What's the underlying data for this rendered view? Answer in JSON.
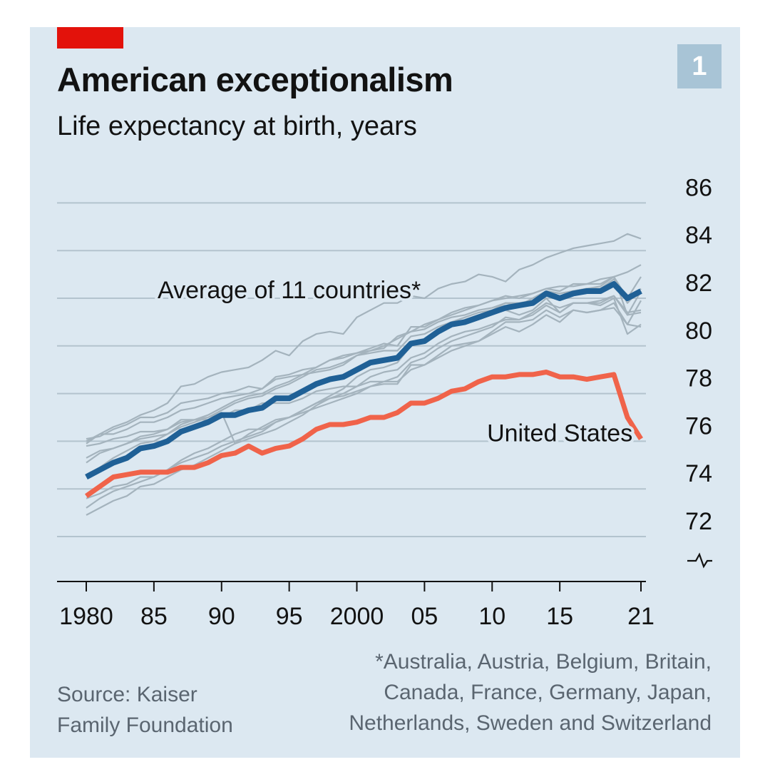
{
  "header": {
    "title": "American exceptionalism",
    "subtitle": "Life expectancy at birth, years",
    "badge": "1"
  },
  "source": {
    "line1": "Source: Kaiser",
    "line2": "Family Foundation"
  },
  "footnote": {
    "line1": "*Australia, Austria, Belgium, Britain,",
    "line2": "Canada, France, Germany, Japan,",
    "line3": "Netherlands, Sweden and Switzerland"
  },
  "colors": {
    "background": "#dce8f1",
    "accent_red": "#e3120b",
    "average_line": "#1f6096",
    "us_line": "#f0634a",
    "country_lines": "#a4b3bd",
    "gridlines": "#b3c3ce"
  },
  "chart_data": {
    "type": "line",
    "title": "American exceptionalism",
    "subtitle": "Life expectancy at birth, years",
    "ylim": [
      71,
      86
    ],
    "xlim": [
      1980,
      2021
    ],
    "y_ticks": [
      72,
      74,
      76,
      78,
      80,
      82,
      84,
      86
    ],
    "y_tick_labels": [
      "72",
      "74",
      "76",
      "78",
      "80",
      "82",
      "84",
      "86"
    ],
    "x_ticks": [
      1980,
      1985,
      1990,
      1995,
      2000,
      2005,
      2010,
      2015,
      2021
    ],
    "x_tick_labels": [
      "1980",
      "85",
      "90",
      "95",
      "2000",
      "05",
      "10",
      "15",
      "21"
    ],
    "y_axis_broken": true,
    "grid": true,
    "x": [
      1980,
      1981,
      1982,
      1983,
      1984,
      1985,
      1986,
      1987,
      1988,
      1989,
      1990,
      1991,
      1992,
      1993,
      1994,
      1995,
      1996,
      1997,
      1998,
      1999,
      2000,
      2001,
      2002,
      2003,
      2004,
      2005,
      2006,
      2007,
      2008,
      2009,
      2010,
      2011,
      2012,
      2013,
      2014,
      2015,
      2016,
      2017,
      2018,
      2019,
      2020,
      2021
    ],
    "series": [
      {
        "name": "Average of 11 countries*",
        "role": "average",
        "values": [
          74.5,
          74.8,
          75.1,
          75.3,
          75.7,
          75.8,
          76.0,
          76.4,
          76.6,
          76.8,
          77.1,
          77.1,
          77.3,
          77.4,
          77.8,
          77.8,
          78.1,
          78.4,
          78.6,
          78.7,
          79.0,
          79.3,
          79.4,
          79.5,
          80.1,
          80.2,
          80.6,
          80.9,
          81.0,
          81.2,
          81.4,
          81.6,
          81.7,
          81.8,
          82.2,
          82.0,
          82.2,
          82.3,
          82.3,
          82.6,
          82.0,
          82.3
        ]
      },
      {
        "name": "United States",
        "role": "us",
        "values": [
          73.7,
          74.1,
          74.5,
          74.6,
          74.7,
          74.7,
          74.7,
          74.9,
          74.9,
          75.1,
          75.4,
          75.5,
          75.8,
          75.5,
          75.7,
          75.8,
          76.1,
          76.5,
          76.7,
          76.7,
          76.8,
          77.0,
          77.0,
          77.2,
          77.6,
          77.6,
          77.8,
          78.1,
          78.2,
          78.5,
          78.7,
          78.7,
          78.8,
          78.8,
          78.9,
          78.7,
          78.7,
          78.6,
          78.7,
          78.8,
          77.0,
          76.1
        ]
      },
      {
        "role": "country",
        "values": [
          74.6,
          74.9,
          75.3,
          75.6,
          75.9,
          76.0,
          76.3,
          76.7,
          76.9,
          77.0,
          77.3,
          77.6,
          77.8,
          77.9,
          78.2,
          78.4,
          78.7,
          79.0,
          79.1,
          79.3,
          79.6,
          79.8,
          80.0,
          80.3,
          80.6,
          80.9,
          81.1,
          81.4,
          81.6,
          81.7,
          81.9,
          82.0,
          82.1,
          82.2,
          82.4,
          82.5,
          82.5,
          82.6,
          82.8,
          82.9,
          83.1,
          83.4
        ]
      },
      {
        "role": "country",
        "values": [
          72.9,
          73.2,
          73.5,
          73.7,
          74.1,
          74.2,
          74.5,
          74.8,
          75.0,
          75.3,
          75.6,
          75.9,
          76.1,
          76.3,
          76.5,
          76.8,
          77.1,
          77.5,
          77.8,
          78.0,
          78.3,
          78.7,
          78.9,
          79.0,
          79.5,
          79.7,
          80.1,
          80.4,
          80.6,
          80.7,
          80.9,
          81.1,
          81.1,
          81.3,
          81.7,
          81.4,
          81.8,
          81.8,
          81.9,
          82.1,
          81.3,
          81.4
        ]
      },
      {
        "role": "country",
        "values": [
          73.6,
          73.8,
          74.1,
          74.2,
          74.5,
          74.5,
          74.8,
          75.2,
          75.5,
          75.7,
          76.0,
          76.3,
          76.5,
          76.5,
          76.8,
          77.0,
          77.3,
          77.6,
          77.8,
          77.9,
          78.1,
          78.3,
          78.4,
          78.4,
          79.2,
          79.2,
          79.6,
          80.0,
          80.1,
          80.2,
          80.5,
          80.8,
          80.6,
          80.9,
          81.3,
          81.0,
          81.5,
          81.4,
          81.5,
          81.8,
          80.9,
          81.9
        ]
      },
      {
        "role": "country",
        "values": [
          73.2,
          73.6,
          73.9,
          74.1,
          74.3,
          74.5,
          74.8,
          75.1,
          75.3,
          75.5,
          75.8,
          76.0,
          76.2,
          76.4,
          76.8,
          77.0,
          77.2,
          77.4,
          77.6,
          77.8,
          78.0,
          78.3,
          78.5,
          78.5,
          79.0,
          79.2,
          79.5,
          79.8,
          80.0,
          80.2,
          80.6,
          81.0,
          81.0,
          81.1,
          81.5,
          81.2,
          81.5,
          81.4,
          81.5,
          81.6,
          80.9,
          80.8
        ]
      },
      {
        "role": "country",
        "values": [
          75.3,
          75.6,
          75.7,
          75.9,
          76.2,
          76.3,
          76.5,
          76.8,
          76.9,
          77.1,
          77.4,
          77.7,
          77.9,
          78.0,
          78.3,
          78.5,
          78.8,
          79.1,
          79.4,
          79.6,
          79.7,
          79.9,
          80.1,
          80.0,
          80.8,
          80.8,
          81.1,
          81.3,
          81.5,
          81.7,
          81.9,
          82.1,
          82.0,
          82.2,
          82.4,
          82.3,
          82.6,
          82.6,
          82.6,
          82.9,
          82.0,
          82.9
        ]
      },
      {
        "role": "country",
        "values": [
          76.1,
          76.2,
          76.5,
          76.7,
          77.0,
          77.0,
          77.2,
          77.6,
          77.7,
          77.8,
          78.0,
          78.1,
          78.3,
          78.2,
          78.6,
          78.7,
          78.8,
          78.9,
          79.0,
          79.2,
          79.6,
          79.7,
          79.8,
          79.8,
          80.4,
          80.5,
          80.8,
          81.0,
          81.2,
          81.4,
          81.5,
          81.8,
          81.8,
          81.9,
          82.3,
          82.2,
          82.3,
          82.4,
          82.5,
          82.9,
          81.3,
          82.3
        ]
      },
      {
        "role": "country",
        "values": [
          75.8,
          75.9,
          76.1,
          76.2,
          76.4,
          76.4,
          76.5,
          76.9,
          76.9,
          76.9,
          77.0,
          77.3,
          77.3,
          77.6,
          77.6,
          77.6,
          77.8,
          78.1,
          78.2,
          78.3,
          78.3,
          78.5,
          78.5,
          78.7,
          79.3,
          79.5,
          79.9,
          80.2,
          80.4,
          80.6,
          80.8,
          81.2,
          81.1,
          81.4,
          81.8,
          81.6,
          81.8,
          81.8,
          81.8,
          82.1,
          81.4,
          81.5
        ]
      },
      {
        "role": "country",
        "values": [
          76.0,
          76.3,
          76.3,
          76.5,
          76.8,
          76.8,
          77.0,
          77.3,
          77.4,
          77.6,
          77.8,
          77.9,
          78.0,
          78.2,
          78.7,
          78.8,
          79.0,
          79.1,
          79.4,
          79.5,
          79.7,
          79.8,
          79.9,
          80.4,
          80.6,
          80.7,
          81.0,
          81.2,
          81.3,
          81.5,
          81.6,
          81.8,
          81.7,
          82.0,
          82.3,
          82.2,
          82.3,
          82.4,
          82.4,
          82.8,
          81.8,
          82.4
        ]
      },
      {
        "role": "country",
        "values": [
          75.9,
          76.3,
          76.6,
          76.8,
          77.1,
          77.3,
          77.6,
          78.3,
          78.4,
          78.7,
          78.9,
          79.0,
          79.1,
          79.4,
          79.8,
          79.6,
          80.2,
          80.5,
          80.6,
          80.5,
          81.2,
          81.5,
          81.8,
          81.8,
          82.1,
          82.0,
          82.4,
          82.6,
          82.7,
          83.0,
          82.9,
          82.7,
          83.2,
          83.4,
          83.7,
          83.9,
          84.1,
          84.2,
          84.3,
          84.4,
          84.7,
          84.5
        ]
      },
      {
        "role": "country",
        "values": [
          75.1,
          75.5,
          75.7,
          75.9,
          76.1,
          76.2,
          76.3,
          76.6,
          76.8,
          77.0,
          77.2,
          75.9,
          76.3,
          76.6,
          76.9,
          77.0,
          77.3,
          77.6,
          77.9,
          78.2,
          78.7,
          79.0,
          79.1,
          79.3,
          80.0,
          80.2,
          80.7,
          80.9,
          81.1,
          81.3,
          81.4,
          81.5,
          81.3,
          81.5,
          82.0,
          81.4,
          81.8,
          81.8,
          81.7,
          82.0,
          80.5,
          80.9
        ]
      }
    ],
    "series_labels": [
      {
        "text": "Average of 11 countries*",
        "anchor_year": 1995,
        "anchor_value": 82.0
      },
      {
        "text": "United States",
        "anchor_year": 2015,
        "anchor_value": 76.0
      }
    ]
  }
}
